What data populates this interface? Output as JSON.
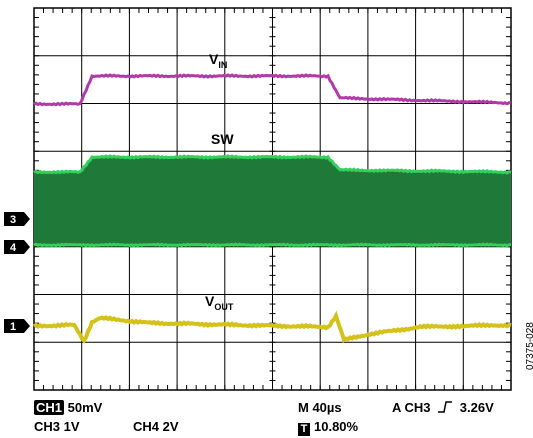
{
  "colors": {
    "vin_trace": "#b03aa8",
    "sw_trace": "#1f7a3a",
    "sw_edge": "#35d05a",
    "vout_trace": "#d4c21a",
    "grid": "#000000"
  },
  "traces": {
    "vin": {
      "label_main": "V",
      "label_sub": "IN",
      "channel": "CH3"
    },
    "sw": {
      "label": "SW",
      "channel": "CH4"
    },
    "vout": {
      "label_main": "V",
      "label_sub": "OUT",
      "channel": "CH1"
    }
  },
  "channel_markers": {
    "ch3": "3",
    "ch4": "4",
    "ch1": "1"
  },
  "readout": {
    "ch1_box": "CH1",
    "ch1_scale": "50mV",
    "ch3_scale": "CH3 1V",
    "ch4_scale": "CH4 2V",
    "timebase": "M 40µs",
    "trigger_prefix": "A  CH3",
    "trigger_slope_icon": "rising-edge-icon",
    "trigger_level": "3.26V",
    "t_icon": "T",
    "trigger_position": "10.80%"
  },
  "figure_number": "07375-028"
}
